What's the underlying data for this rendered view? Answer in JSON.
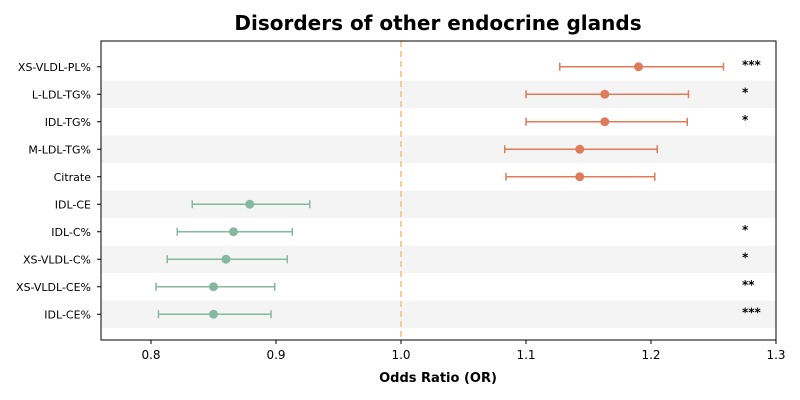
{
  "chart_data": {
    "type": "forest",
    "title": "Disorders of other endocrine glands",
    "xlabel": "Odds Ratio (OR)",
    "xlim": [
      0.76,
      1.3
    ],
    "xticks": [
      "0.8",
      "0.9",
      "1.0",
      "1.1",
      "1.2",
      "1.3"
    ],
    "xtick_values": [
      0.8,
      0.9,
      1.0,
      1.1,
      1.2,
      1.3
    ],
    "reference_line": 1.0,
    "colors": {
      "risk": "#e07b5a",
      "protective": "#85b8a0",
      "reference": "#f5c98a",
      "band": "#f4f4f4"
    },
    "rows": [
      {
        "label": "XS-VLDL-PL%",
        "or": 1.19,
        "lo": 1.127,
        "hi": 1.258,
        "sig": "***",
        "group": "risk"
      },
      {
        "label": "L-LDL-TG%",
        "or": 1.163,
        "lo": 1.1,
        "hi": 1.23,
        "sig": "*",
        "group": "risk"
      },
      {
        "label": "IDL-TG%",
        "or": 1.163,
        "lo": 1.1,
        "hi": 1.229,
        "sig": "*",
        "group": "risk"
      },
      {
        "label": "M-LDL-TG%",
        "or": 1.143,
        "lo": 1.083,
        "hi": 1.205,
        "sig": "",
        "group": "risk"
      },
      {
        "label": "Citrate",
        "or": 1.143,
        "lo": 1.084,
        "hi": 1.203,
        "sig": "",
        "group": "risk"
      },
      {
        "label": "IDL-CE",
        "or": 0.879,
        "lo": 0.833,
        "hi": 0.927,
        "sig": "",
        "group": "protective"
      },
      {
        "label": "IDL-C%",
        "or": 0.866,
        "lo": 0.821,
        "hi": 0.913,
        "sig": "*",
        "group": "protective"
      },
      {
        "label": "XS-VLDL-C%",
        "or": 0.86,
        "lo": 0.813,
        "hi": 0.909,
        "sig": "*",
        "group": "protective"
      },
      {
        "label": "XS-VLDL-CE%",
        "or": 0.85,
        "lo": 0.804,
        "hi": 0.899,
        "sig": "**",
        "group": "protective"
      },
      {
        "label": "IDL-CE%",
        "or": 0.85,
        "lo": 0.806,
        "hi": 0.896,
        "sig": "***",
        "group": "protective"
      }
    ]
  }
}
